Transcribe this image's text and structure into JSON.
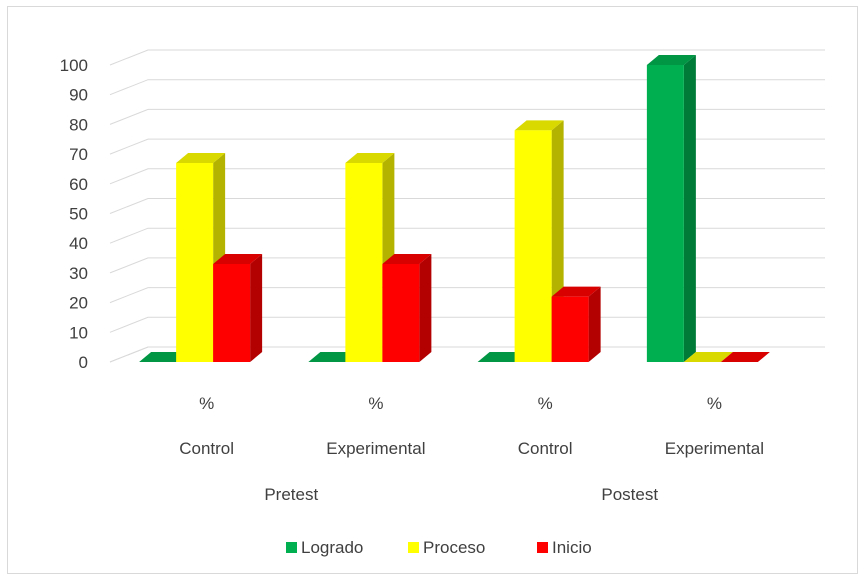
{
  "chart_data": {
    "type": "bar",
    "variant": "3d-clustered-column",
    "title": "",
    "xlabel": "",
    "ylabel": "",
    "ylim": [
      0,
      100
    ],
    "yticks": [
      0,
      10,
      20,
      30,
      40,
      50,
      60,
      70,
      80,
      90,
      100
    ],
    "grid": true,
    "legend_position": "bottom",
    "category_levels": {
      "level1": [
        "%",
        "%",
        "%",
        "%"
      ],
      "level2": [
        "Control",
        "Experimental",
        "Control",
        "Experimental"
      ],
      "level3": [
        {
          "label": "Pretest",
          "span": [
            0,
            1
          ]
        },
        {
          "label": "Postest",
          "span": [
            2,
            3
          ]
        }
      ]
    },
    "series": [
      {
        "name": "Logrado",
        "color": "#00b050",
        "values": [
          0,
          0,
          0,
          100
        ]
      },
      {
        "name": "Proceso",
        "color": "#ffff00",
        "values": [
          67,
          67,
          78,
          0
        ]
      },
      {
        "name": "Inicio",
        "color": "#ff0000",
        "values": [
          33,
          33,
          22,
          0
        ]
      }
    ]
  }
}
